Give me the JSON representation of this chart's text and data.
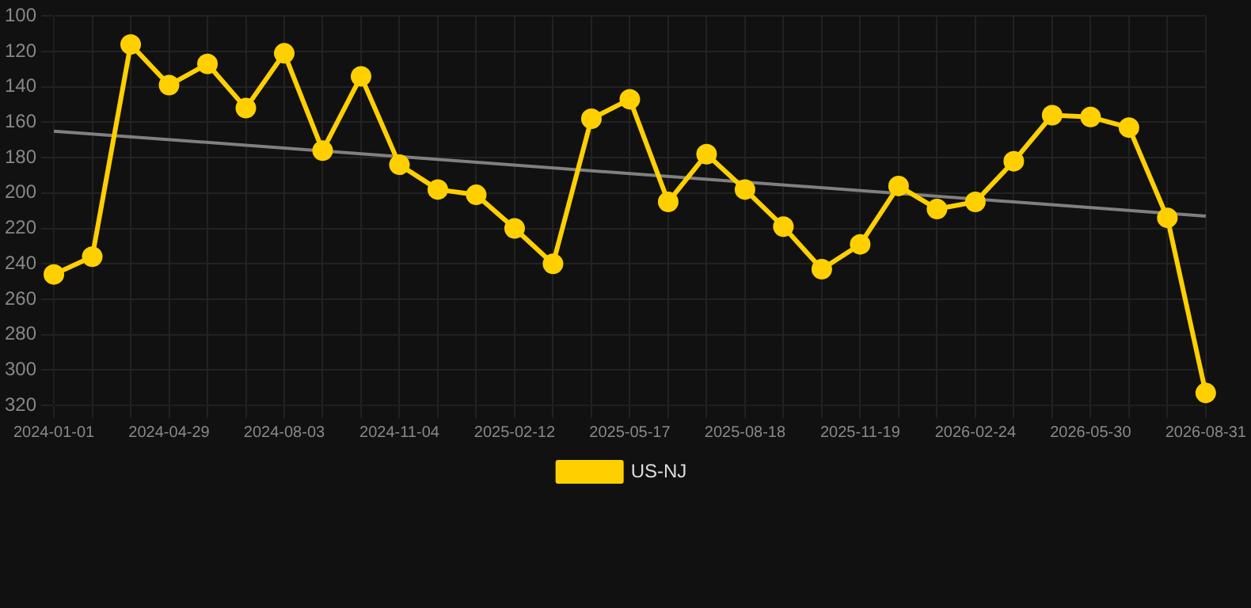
{
  "chart_data": {
    "type": "line",
    "categories": [
      "2024-01-01",
      null,
      null,
      "2024-04-29",
      null,
      null,
      "2024-08-03",
      null,
      null,
      "2024-11-04",
      null,
      null,
      "2025-02-12",
      null,
      null,
      "2025-05-17",
      null,
      null,
      "2025-08-18",
      null,
      null,
      "2025-11-19",
      null,
      null,
      "2026-02-24",
      null,
      null,
      "2026-05-30",
      null,
      null,
      "2026-08-31"
    ],
    "series": [
      {
        "name": "US-NJ",
        "color": "#ffd000",
        "marker": "circle",
        "values": [
          246,
          236,
          116,
          139,
          127,
          152,
          121,
          176,
          134,
          184,
          198,
          201,
          220,
          240,
          158,
          147,
          205,
          178,
          198,
          219,
          243,
          229,
          196,
          209,
          205,
          182,
          156,
          157,
          163,
          214,
          313
        ]
      },
      {
        "type": "line",
        "color": "#808080",
        "marker": "none",
        "values": [
          165,
          null,
          null,
          null,
          null,
          null,
          null,
          null,
          null,
          null,
          null,
          null,
          null,
          null,
          null,
          null,
          null,
          null,
          null,
          null,
          null,
          null,
          null,
          null,
          null,
          null,
          null,
          null,
          null,
          null,
          213
        ]
      }
    ],
    "ylim": [
      320,
      100
    ],
    "yticks": [
      100,
      120,
      140,
      160,
      180,
      200,
      220,
      240,
      260,
      280,
      300,
      320
    ],
    "grid": true,
    "legend": "bottom"
  }
}
